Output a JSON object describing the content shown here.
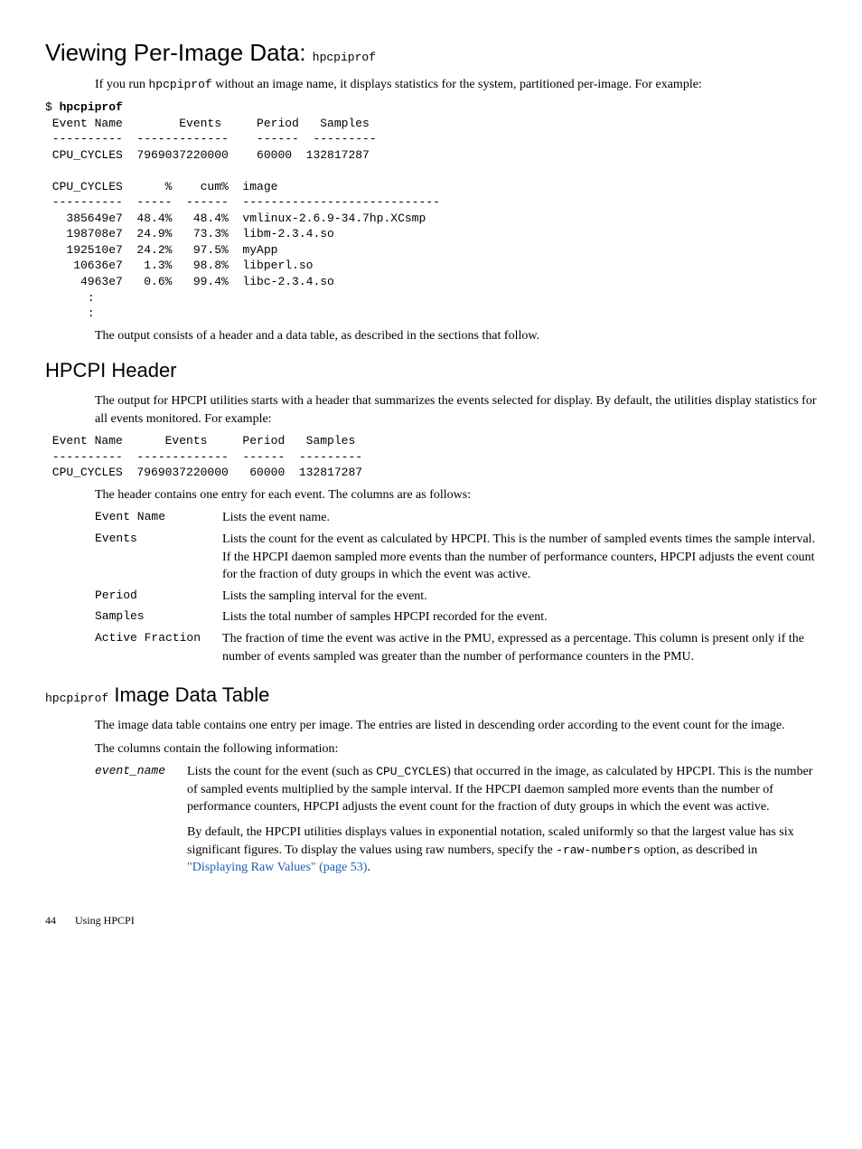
{
  "heading1": {
    "pre": "Viewing Per-Image Data: ",
    "code": "hpcpiprof"
  },
  "para1_pre": "If you run ",
  "para1_code": "hpcpiprof",
  "para1_post": " without an image name, it displays statistics for the system, partitioned per-image. For example:",
  "codeblock1_l1": "$ ",
  "codeblock1_l1b": "hpcpiprof",
  "codeblock1_l2": " Event Name        Events     Period   Samples",
  "codeblock1_l3": " ----------  -------------    ------  ---------",
  "codeblock1_l4": " CPU_CYCLES  7969037220000    60000  132817287",
  "codeblock1_l5": "",
  "codeblock1_l6": " CPU_CYCLES      %    cum%  image",
  "codeblock1_l7": " ----------  -----  ------  ----------------------------",
  "codeblock1_l8": "   385649e7  48.4%   48.4%  vmlinux-2.6.9-34.7hp.XCsmp",
  "codeblock1_l9": "   198708e7  24.9%   73.3%  libm-2.3.4.so",
  "codeblock1_l10": "   192510e7  24.2%   97.5%  myApp",
  "codeblock1_l11": "    10636e7   1.3%   98.8%  libperl.so",
  "codeblock1_l12": "     4963e7   0.6%   99.4%  libc-2.3.4.so",
  "codeblock1_l13": "      :",
  "codeblock1_l14": "      :",
  "para2": "The output consists of a header and a data table, as described in the sections that follow.",
  "heading2": "HPCPI Header",
  "para3": "The output for HPCPI utilities starts with a header that summarizes the events selected for display. By default, the utilities display statistics for all events monitored. For example:",
  "codeblock2_l1": " Event Name      Events     Period   Samples",
  "codeblock2_l2": " ----------  -------------  ------  ---------",
  "codeblock2_l3": " CPU_CYCLES  7969037220000   60000  132817287",
  "para4": "The header contains one entry for each event. The columns are as follows:",
  "defs1": {
    "r1": {
      "term": "Event Name",
      "desc": "Lists the event name."
    },
    "r2": {
      "term": "Events",
      "desc": "Lists the count for the event as calculated by HPCPI. This is the number of sampled events times the sample interval. If the HPCPI daemon sampled more events than the number of performance counters, HPCPI adjusts the event count for the fraction of duty groups in which the event was active."
    },
    "r3": {
      "term": "Period",
      "desc": "Lists the sampling interval for the event."
    },
    "r4": {
      "term": "Samples",
      "desc": "Lists the total number of samples HPCPI recorded for the event."
    },
    "r5": {
      "term": "Active Fraction",
      "desc": "The fraction of time the event was active in the PMU, expressed as a percentage. This column is present only if the number of events sampled was greater than the number of performance counters in the PMU."
    }
  },
  "heading3_code": "hpcpiprof",
  "heading3_post": " Image Data Table",
  "para5": "The image data table contains one entry per image. The entries are listed in descending order according to the event count for the image.",
  "para6": "The columns contain the following information:",
  "defs2": {
    "r1": {
      "term": "event_name",
      "p1_pre": "Lists the count for the event (such as ",
      "p1_code": "CPU_CYCLES",
      "p1_post": ") that occurred in the image, as calculated by HPCPI. This is the number of sampled events multiplied by the sample interval. If the HPCPI daemon sampled more events than the number of performance counters, HPCPI adjusts the event count for the fraction of duty groups in which the event was active.",
      "p2_pre": "By default, the HPCPI utilities displays values in exponential notation, scaled uniformly so that the largest value has six significant figures. To display the values using raw numbers, specify the ",
      "p2_code": "-raw-numbers",
      "p2_post": " option, as described in ",
      "p2_link": "\"Displaying Raw Values\" (page 53)",
      "p2_end": "."
    }
  },
  "footer": {
    "page": "44",
    "section": "Using HPCPI"
  }
}
